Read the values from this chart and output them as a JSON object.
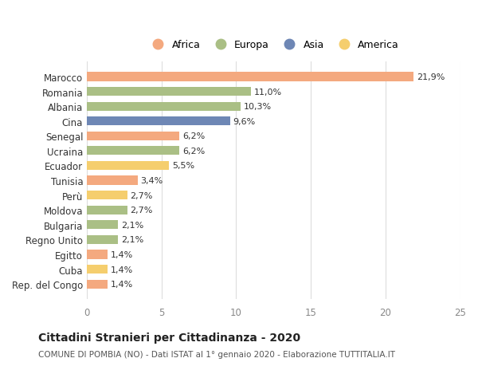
{
  "countries": [
    "Marocco",
    "Romania",
    "Albania",
    "Cina",
    "Senegal",
    "Ucraina",
    "Ecuador",
    "Tunisia",
    "Perù",
    "Moldova",
    "Bulgaria",
    "Regno Unito",
    "Egitto",
    "Cuba",
    "Rep. del Congo"
  ],
  "values": [
    21.9,
    11.0,
    10.3,
    9.6,
    6.2,
    6.2,
    5.5,
    3.4,
    2.7,
    2.7,
    2.1,
    2.1,
    1.4,
    1.4,
    1.4
  ],
  "labels": [
    "21,9%",
    "11,0%",
    "10,3%",
    "9,6%",
    "6,2%",
    "6,2%",
    "5,5%",
    "3,4%",
    "2,7%",
    "2,7%",
    "2,1%",
    "2,1%",
    "1,4%",
    "1,4%",
    "1,4%"
  ],
  "continents": [
    "Africa",
    "Europa",
    "Europa",
    "Asia",
    "Africa",
    "Europa",
    "America",
    "Africa",
    "America",
    "Europa",
    "Europa",
    "Europa",
    "Africa",
    "America",
    "Africa"
  ],
  "colors": {
    "Africa": "#F4A97F",
    "Europa": "#AABF85",
    "Asia": "#6E87B5",
    "America": "#F5CE6E"
  },
  "legend_order": [
    "Africa",
    "Europa",
    "Asia",
    "America"
  ],
  "title": "Cittadini Stranieri per Cittadinanza - 2020",
  "subtitle": "COMUNE DI POMBIA (NO) - Dati ISTAT al 1° gennaio 2020 - Elaborazione TUTTITALIA.IT",
  "xlim": [
    0,
    25
  ],
  "xticks": [
    0,
    5,
    10,
    15,
    20,
    25
  ],
  "background_color": "#ffffff",
  "grid_color": "#dddddd",
  "bar_height": 0.6
}
